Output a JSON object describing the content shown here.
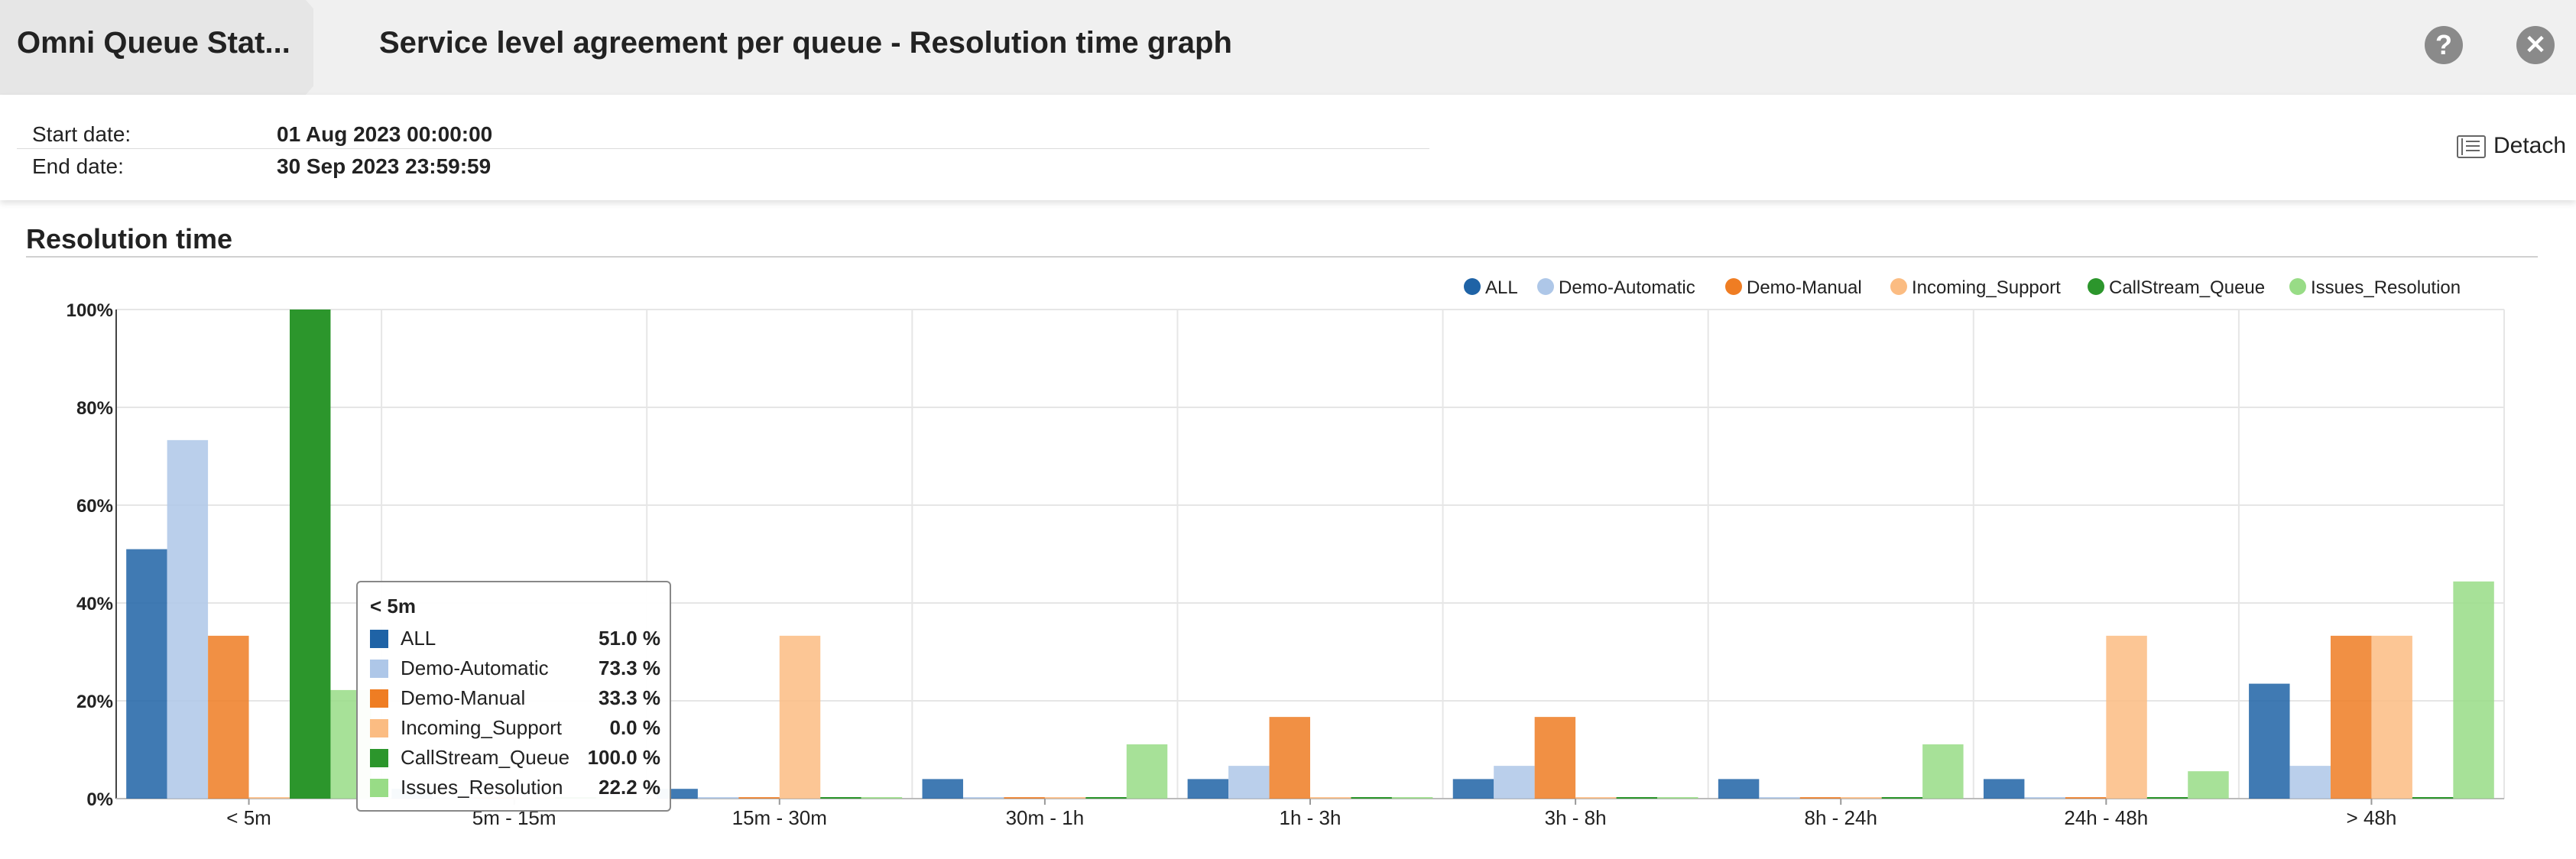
{
  "header": {
    "breadcrumb": "Omni Queue Stat...",
    "title": "Service level agreement per queue - Resolution time graph",
    "help_icon": "question-icon",
    "close_icon": "close-icon"
  },
  "filters": {
    "start_label": "Start date:",
    "start_value": "01 Aug 2023 00:00:00",
    "end_label": "End date:",
    "end_value": "30 Sep 2023 23:59:59"
  },
  "detach": {
    "label": "Detach",
    "icon": "list-window-icon"
  },
  "section": {
    "title": "Resolution time"
  },
  "chart_data": {
    "type": "bar",
    "title": "",
    "xlabel": "",
    "ylabel": "",
    "categories": [
      "< 5m",
      "5m - 15m",
      "15m - 30m",
      "30m - 1h",
      "1h - 3h",
      "3h - 8h",
      "8h - 24h",
      "24h - 48h",
      "> 48h"
    ],
    "ylim": [
      0,
      100
    ],
    "yticks": [
      "0%",
      "20%",
      "40%",
      "60%",
      "80%",
      "100%"
    ],
    "grid": true,
    "legend_position": "top-right",
    "series": [
      {
        "name": "ALL",
        "color": "#1f63a6",
        "values": [
          51.0,
          2.0,
          2.0,
          4.0,
          4.0,
          4.0,
          4.0,
          4.0,
          23.5
        ]
      },
      {
        "name": "Demo-Automatic",
        "color": "#aec7e8",
        "values": [
          73.3,
          0.0,
          0.0,
          0.0,
          6.7,
          6.7,
          0.0,
          0.0,
          6.7
        ]
      },
      {
        "name": "Demo-Manual",
        "color": "#ef7d23",
        "values": [
          33.3,
          0.0,
          0.0,
          0.0,
          16.7,
          16.7,
          0.0,
          0.0,
          33.3
        ]
      },
      {
        "name": "Incoming_Support",
        "color": "#fbbc82",
        "values": [
          0.0,
          0.0,
          33.3,
          0.0,
          0.0,
          0.0,
          0.0,
          33.3,
          33.3
        ]
      },
      {
        "name": "CallStream_Queue",
        "color": "#2c962c",
        "values": [
          100.0,
          0.0,
          0.0,
          0.0,
          0.0,
          0.0,
          0.0,
          0.0,
          0.0
        ]
      },
      {
        "name": "Issues_Resolution",
        "color": "#98dc86",
        "values": [
          22.2,
          0.0,
          0.0,
          11.1,
          0.0,
          0.0,
          11.1,
          5.6,
          44.4
        ]
      }
    ]
  },
  "tooltip": {
    "title": "< 5m",
    "rows": [
      {
        "name": "ALL",
        "value": "51.0 %"
      },
      {
        "name": "Demo-Automatic",
        "value": "73.3 %"
      },
      {
        "name": "Demo-Manual",
        "value": "33.3 %"
      },
      {
        "name": "Incoming_Support",
        "value": "0.0 %"
      },
      {
        "name": "CallStream_Queue",
        "value": "100.0 %"
      },
      {
        "name": "Issues_Resolution",
        "value": "22.2 %"
      }
    ]
  }
}
